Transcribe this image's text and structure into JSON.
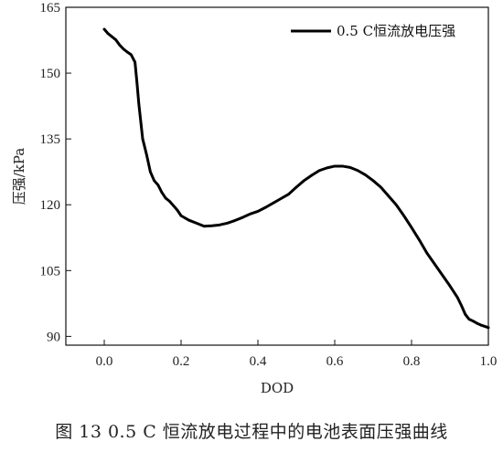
{
  "chart_data": {
    "type": "line",
    "xlabel": "DOD",
    "ylabel": "压强/kPa",
    "xlim": [
      -0.1,
      1.0
    ],
    "ylim": [
      88,
      165
    ],
    "xticks": [
      0.0,
      0.2,
      0.4,
      0.6,
      0.8,
      1.0
    ],
    "xtick_labels": [
      "0.0",
      "0.2",
      "0.4",
      "0.6",
      "0.8",
      "1.0"
    ],
    "yticks": [
      90,
      105,
      120,
      135,
      150,
      165
    ],
    "ytick_labels": [
      "90",
      "105",
      "120",
      "135",
      "150",
      "165"
    ],
    "grid": false,
    "legend_position": "top-right",
    "series": [
      {
        "name": "0.5 C恒流放电压强",
        "color": "#000000",
        "x": [
          0.0,
          0.01,
          0.02,
          0.03,
          0.04,
          0.05,
          0.06,
          0.07,
          0.08,
          0.085,
          0.09,
          0.1,
          0.11,
          0.12,
          0.13,
          0.14,
          0.15,
          0.16,
          0.17,
          0.18,
          0.19,
          0.2,
          0.22,
          0.24,
          0.26,
          0.28,
          0.3,
          0.32,
          0.34,
          0.36,
          0.38,
          0.4,
          0.42,
          0.44,
          0.46,
          0.48,
          0.5,
          0.52,
          0.54,
          0.56,
          0.58,
          0.6,
          0.62,
          0.64,
          0.66,
          0.68,
          0.7,
          0.72,
          0.74,
          0.76,
          0.78,
          0.8,
          0.82,
          0.84,
          0.86,
          0.88,
          0.9,
          0.92,
          0.93,
          0.94,
          0.95,
          0.96,
          0.97,
          0.98,
          0.99,
          1.0
        ],
        "y": [
          160.0,
          159.0,
          158.3,
          157.6,
          156.4,
          155.5,
          154.8,
          154.2,
          152.5,
          148.0,
          143.0,
          135.0,
          131.5,
          127.5,
          125.5,
          124.5,
          122.8,
          121.5,
          120.8,
          119.8,
          118.8,
          117.5,
          116.5,
          115.8,
          115.1,
          115.2,
          115.4,
          115.8,
          116.4,
          117.1,
          117.9,
          118.5,
          119.4,
          120.4,
          121.4,
          122.4,
          124.0,
          125.5,
          126.7,
          127.8,
          128.4,
          128.8,
          128.8,
          128.5,
          127.8,
          126.8,
          125.5,
          124.0,
          122.0,
          120.0,
          117.5,
          114.8,
          112.0,
          109.0,
          106.5,
          104.0,
          101.5,
          98.8,
          97.0,
          95.0,
          93.9,
          93.5,
          93.0,
          92.6,
          92.3,
          92.0
        ]
      }
    ]
  },
  "caption": "图 13   0.5 C 恒流放电过程中的电池表面压强曲线"
}
